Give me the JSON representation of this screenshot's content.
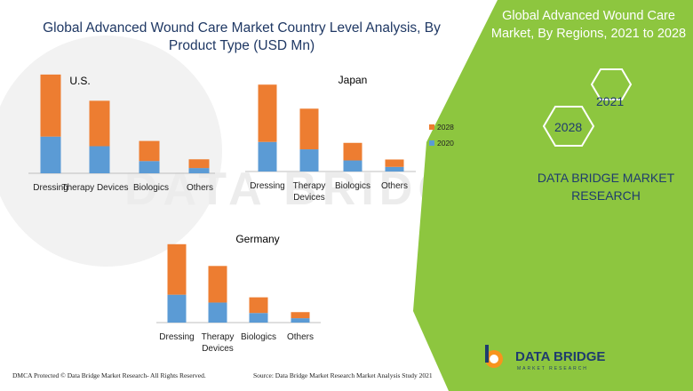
{
  "title": "Global  Advanced Wound Care Market Country Level Analysis, By Product Type (USD Mn)",
  "side_panel": {
    "title": "Global Advanced Wound Care Market, By Regions, 2021 to 2028",
    "year_a": "2021",
    "year_b": "2028",
    "brand": "DATA BRIDGE MARKET RESEARCH"
  },
  "footer": {
    "left": "DMCA Protected © Data Bridge Market Research- All Rights Reserved.",
    "right": "Source: Data Bridge Market Research Market Analysis Study 2021"
  },
  "logo": {
    "name": "DATA BRIDGE",
    "tagline": "MARKET RESEARCH"
  },
  "watermark": "DATA BRIDGE MARKET RESEARCH",
  "colors": {
    "s2020": "#5b9bd5",
    "s2028": "#ed7d31",
    "green": "#8dc63f",
    "navy": "#1f3864"
  },
  "chart_data": [
    {
      "type": "bar",
      "stacked": true,
      "title": "U.S.",
      "categories": [
        "Dressing",
        "Therapy Devices",
        "Biologics",
        "Others"
      ],
      "series": [
        {
          "name": "2020",
          "values": [
            42,
            31,
            14,
            6
          ]
        },
        {
          "name": "2028",
          "values": [
            71,
            52,
            23,
            10
          ]
        }
      ],
      "ylim": [
        0,
        120
      ]
    },
    {
      "type": "bar",
      "stacked": true,
      "title": "Japan",
      "categories": [
        "Dressing",
        "Therapy Devices",
        "Biologics",
        "Others"
      ],
      "series": [
        {
          "name": "2020",
          "values": [
            32,
            24,
            12,
            5
          ]
        },
        {
          "name": "2028",
          "values": [
            62,
            44,
            19,
            8
          ]
        }
      ],
      "legend": {
        "position": "right",
        "entries": [
          "2028",
          "2020"
        ]
      },
      "ylim": [
        0,
        100
      ]
    },
    {
      "type": "bar",
      "stacked": true,
      "title": "Germany",
      "categories": [
        "Dressing",
        "Therapy Devices",
        "Biologics",
        "Others"
      ],
      "series": [
        {
          "name": "2020",
          "values": [
            32,
            23,
            11,
            5
          ]
        },
        {
          "name": "2028",
          "values": [
            58,
            42,
            18,
            7
          ]
        }
      ],
      "ylim": [
        0,
        100
      ]
    }
  ]
}
